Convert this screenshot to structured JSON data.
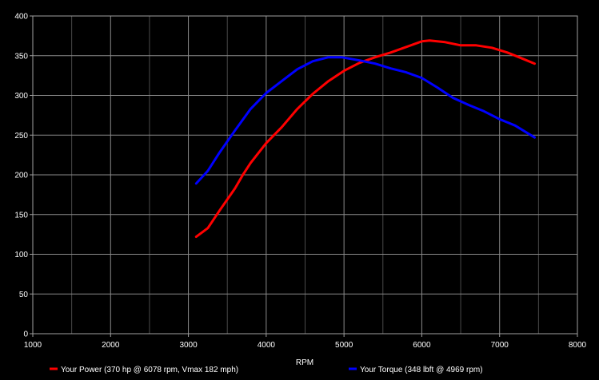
{
  "chart_data": {
    "type": "line",
    "title": "",
    "xlabel": "RPM",
    "ylabel": "",
    "xlim": [
      1000,
      8000
    ],
    "ylim": [
      0,
      400
    ],
    "x_ticks": [
      1000,
      2000,
      3000,
      4000,
      5000,
      6000,
      7000,
      8000
    ],
    "y_ticks": [
      0,
      50,
      100,
      150,
      200,
      250,
      300,
      350,
      400
    ],
    "grid": true,
    "legend_position": "bottom",
    "background": "#000000",
    "series": [
      {
        "name": "Your Power (370 hp @ 6078 rpm, Vmax 182 mph)",
        "color": "#ff0000",
        "points": [
          [
            3100,
            122
          ],
          [
            3250,
            133
          ],
          [
            3400,
            155
          ],
          [
            3600,
            183
          ],
          [
            3700,
            200
          ],
          [
            3800,
            215
          ],
          [
            4000,
            240
          ],
          [
            4200,
            260
          ],
          [
            4400,
            283
          ],
          [
            4600,
            302
          ],
          [
            4800,
            318
          ],
          [
            5000,
            331
          ],
          [
            5200,
            341
          ],
          [
            5400,
            348
          ],
          [
            5600,
            354
          ],
          [
            5800,
            361
          ],
          [
            6000,
            368
          ],
          [
            6100,
            369
          ],
          [
            6300,
            367
          ],
          [
            6500,
            363
          ],
          [
            6700,
            363
          ],
          [
            6900,
            360
          ],
          [
            7100,
            354
          ],
          [
            7300,
            346
          ],
          [
            7450,
            340
          ]
        ]
      },
      {
        "name": "Your Torque (348 lbft @ 4969 rpm)",
        "color": "#0000ff",
        "points": [
          [
            3100,
            189
          ],
          [
            3250,
            205
          ],
          [
            3400,
            228
          ],
          [
            3600,
            256
          ],
          [
            3800,
            283
          ],
          [
            4000,
            303
          ],
          [
            4200,
            318
          ],
          [
            4400,
            333
          ],
          [
            4600,
            343
          ],
          [
            4800,
            348
          ],
          [
            4969,
            348
          ],
          [
            5200,
            344
          ],
          [
            5400,
            340
          ],
          [
            5600,
            334
          ],
          [
            5800,
            329
          ],
          [
            6000,
            322
          ],
          [
            6200,
            310
          ],
          [
            6400,
            297
          ],
          [
            6600,
            288
          ],
          [
            6800,
            280
          ],
          [
            7000,
            270
          ],
          [
            7200,
            262
          ],
          [
            7450,
            247
          ]
        ]
      }
    ]
  }
}
